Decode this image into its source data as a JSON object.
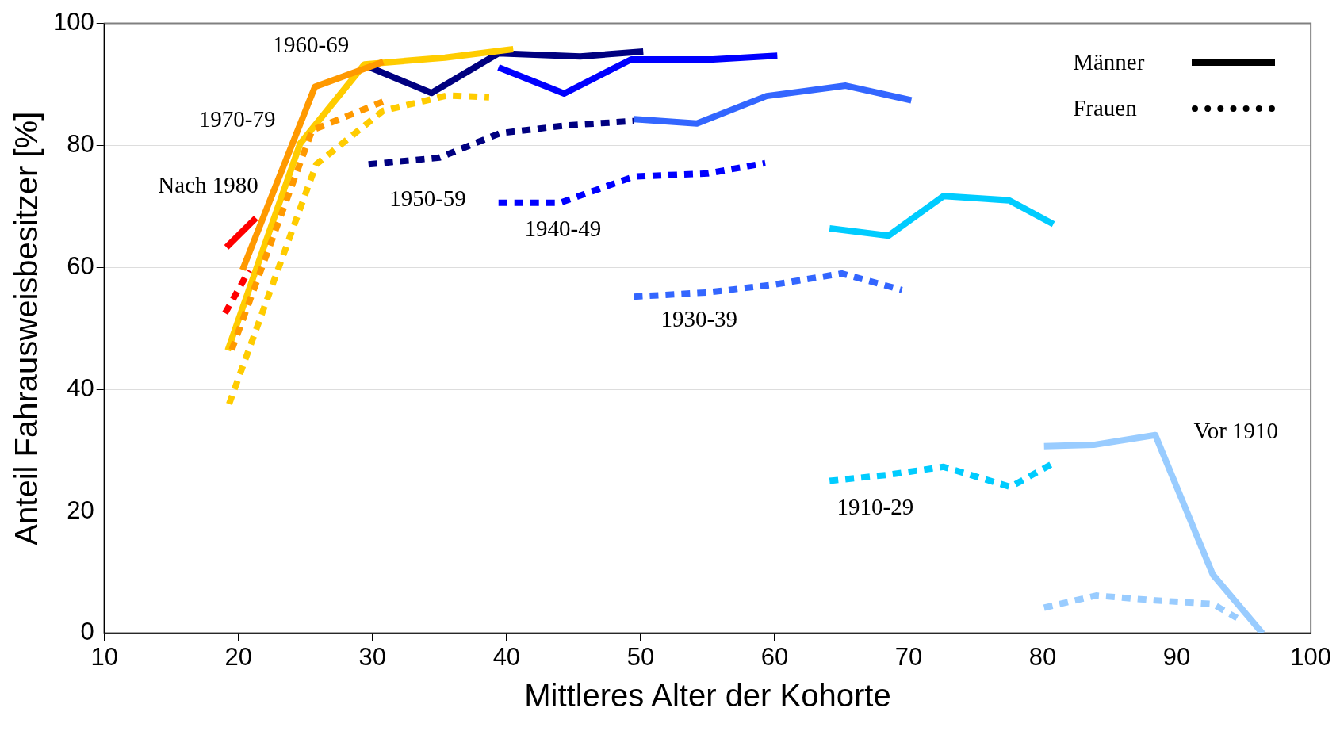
{
  "chart_data": {
    "type": "line",
    "xlabel": "Mittleres Alter der Kohorte",
    "ylabel": "Anteil Fahrausweisbesitzer [%]",
    "xlim": [
      10,
      100
    ],
    "xticks": [
      10,
      20,
      30,
      40,
      50,
      60,
      70,
      80,
      90,
      100
    ],
    "ylim": [
      0,
      100
    ],
    "yticks": [
      0,
      20,
      40,
      60,
      80,
      100
    ],
    "grid": "y",
    "legend": "top right",
    "marker": "none",
    "series": [
      {
        "name": "Männer",
        "color": "#000000",
        "line_style": "solid"
      },
      {
        "name": "Frauen",
        "color": "#000000",
        "line_style": "dotted"
      },
      {
        "color": "#ff0000",
        "line_style": "solid",
        "x": [
          19.1,
          21.3
        ],
        "values": [
          63.3,
          68.1
        ]
      },
      {
        "color": "#ff0000",
        "line_style": "dotted",
        "x": [
          19.0,
          20.8
        ],
        "values": [
          52.5,
          59.5
        ]
      },
      {
        "color": "#ff9900",
        "line_style": "solid",
        "x": [
          20.3,
          25.7,
          30.8
        ],
        "values": [
          59.6,
          89.6,
          93.7
        ]
      },
      {
        "color": "#ff9900",
        "line_style": "dotted",
        "x": [
          19.5,
          25.5,
          30.8
        ],
        "values": [
          46.5,
          82.5,
          87.2
        ]
      },
      {
        "color": "#ffcc00",
        "line_style": "solid",
        "x": [
          19.2,
          24.6,
          29.4,
          35.4,
          40.5
        ],
        "values": [
          46.4,
          80.3,
          93.3,
          94.4,
          95.8
        ]
      },
      {
        "color": "#ffcc00",
        "line_style": "dotted",
        "x": [
          19.3,
          25.8,
          30.8,
          35.6,
          38.7
        ],
        "values": [
          37.6,
          76.9,
          85.7,
          88.2,
          87.9
        ]
      },
      {
        "color": "#000080",
        "line_style": "solid",
        "x": [
          29.8,
          34.4,
          39.4,
          45.5,
          50.2
        ],
        "values": [
          92.8,
          88.6,
          95.1,
          94.6,
          95.4
        ]
      },
      {
        "color": "#000080",
        "line_style": "dotted",
        "x": [
          29.7,
          35,
          39.5,
          44.5,
          49.5
        ],
        "values": [
          76.9,
          78,
          82,
          83.3,
          84
        ]
      },
      {
        "color": "#0000ff",
        "line_style": "solid",
        "x": [
          39.4,
          44.3,
          49.3,
          55.4,
          60.2
        ],
        "values": [
          92.8,
          88.5,
          94.1,
          94.1,
          94.7
        ]
      },
      {
        "color": "#0000ff",
        "line_style": "dotted",
        "x": [
          39.4,
          44,
          49.5,
          55,
          59.3
        ],
        "values": [
          70.6,
          70.6,
          74.9,
          75.4,
          77.1
        ]
      },
      {
        "color": "#3366ff",
        "line_style": "solid",
        "x": [
          49.5,
          54.2,
          59.4,
          65.3,
          70.2
        ],
        "values": [
          84.3,
          83.6,
          88.1,
          89.8,
          87.4
        ]
      },
      {
        "color": "#3366ff",
        "line_style": "dotted",
        "x": [
          49.5,
          55,
          60,
          65,
          69.5
        ],
        "values": [
          55.2,
          55.9,
          57.2,
          59,
          56.3
        ]
      },
      {
        "color": "#00ccff",
        "line_style": "solid",
        "x": [
          64.1,
          68.5,
          72.6,
          77.5,
          80.8
        ],
        "values": [
          66.4,
          65.2,
          71.7,
          71,
          67.1
        ]
      },
      {
        "color": "#00ccff",
        "line_style": "dotted",
        "x": [
          64.1,
          68.5,
          72.6,
          77.6,
          80.8
        ],
        "values": [
          25,
          26,
          27.3,
          24,
          27.9
        ]
      },
      {
        "color": "#99ccff",
        "line_style": "solid",
        "x": [
          80.1,
          83.8,
          88.4,
          92.7,
          96.4
        ],
        "values": [
          30.7,
          30.9,
          32.5,
          9.6,
          0
        ]
      },
      {
        "color": "#99ccff",
        "line_style": "dotted",
        "x": [
          80.1,
          84,
          88.4,
          92.7,
          94.5
        ],
        "values": [
          4.2,
          6.2,
          5.4,
          4.8,
          2.5
        ]
      }
    ],
    "annotations": [
      "1960-69",
      "1970-79",
      "Nach 1980",
      "1950-59",
      "1940-49",
      "1930-39",
      "1910-29",
      "Vor 1910"
    ]
  }
}
